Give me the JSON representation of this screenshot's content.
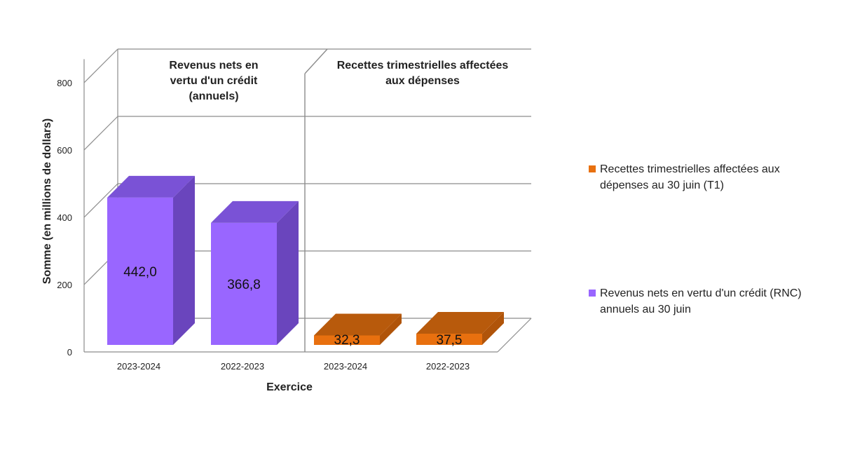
{
  "chart_data": {
    "type": "bar",
    "style": "3d",
    "xlabel": "Exercice",
    "ylabel": "Somme (en millions de dollars)",
    "ylim": [
      0,
      800
    ],
    "yticks": [
      "0",
      "200",
      "400",
      "600",
      "800"
    ],
    "grid": true,
    "legend_position": "right",
    "panels": [
      {
        "title": "Revenus nets en vertu d'un crédit (annuels)",
        "series_name": "Revenus nets en vertu d'un crédit (RNC) annuels au 30 juin",
        "categories": [
          "2023-2024",
          "2022-2023"
        ],
        "values": [
          442.0,
          366.8
        ],
        "labels": [
          "442,0",
          "366,8"
        ]
      },
      {
        "title": "Recettes trimestrielles affectées aux dépenses",
        "series_name": "Recettes trimestrielles affectées aux dépenses au 30 juin (T1)",
        "categories": [
          "2023-2024",
          "2022-2023"
        ],
        "values": [
          32.3,
          37.5
        ],
        "labels": [
          "32,3",
          "37,5"
        ]
      }
    ],
    "colors": {
      "purple": {
        "front": "#9966FF",
        "side": "#6A45BD",
        "top": "#7A52D6"
      },
      "orange": {
        "front": "#E8700F",
        "side": "#B0540A",
        "top": "#B85A0C"
      }
    }
  },
  "legend": {
    "items": [
      {
        "label": "Recettes trimestrielles affectées aux dépenses au 30 juin (T1)",
        "color": "#E8700F"
      },
      {
        "label": "Revenus nets en vertu d'un crédit (RNC) annuels au 30 juin",
        "color": "#9966FF"
      }
    ]
  }
}
